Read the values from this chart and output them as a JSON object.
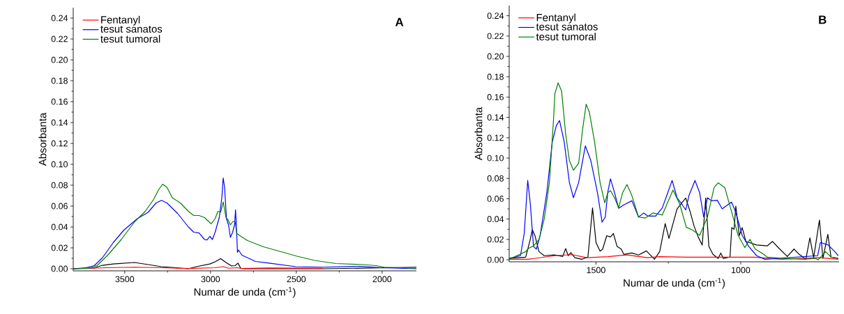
{
  "chart_data": [
    {
      "type": "line",
      "xlabel": "Numar de unda (cm$^{-1}$)",
      "ylabel": "Absorbanta",
      "annotations": [
        "A"
      ],
      "legend": "top left",
      "xlim": [
        3800,
        1800
      ],
      "ylim": [
        -0.002,
        0.25
      ],
      "xticks": [
        3500,
        3000,
        2500,
        2000
      ],
      "yticks": [
        {
          "value": 0,
          "label": "0.00"
        },
        {
          "value": 0.02,
          "label": "0.02"
        },
        {
          "value": 0.04,
          "label": "0.04"
        },
        {
          "value": 0.06,
          "label": "0.06"
        },
        {
          "value": 0.08,
          "label": "0.08"
        },
        {
          "value": 0.1,
          "label": "0.10"
        },
        {
          "value": 0.12,
          "label": "0.12"
        },
        {
          "value": 0.14,
          "label": "0.14"
        },
        {
          "value": 0.16,
          "label": "0.16"
        },
        {
          "value": 0.18,
          "label": "0.18"
        },
        {
          "value": 0.2,
          "label": "0.20"
        },
        {
          "value": 0.22,
          "label": "0.22"
        },
        {
          "value": 0.24,
          "label": "0.24"
        }
      ],
      "series": [
        {
          "color": "#000000",
          "x": [
            3800,
            3677,
            3630,
            3567,
            3442,
            3364,
            3286,
            3129,
            3082,
            3004,
            2973,
            2941,
            2910,
            2879,
            2856,
            2840,
            2824,
            2801,
            2347,
            1956,
            1800
          ],
          "values": [
            0,
            0.0008,
            0.0033,
            0.0046,
            0.006,
            0.004,
            0.002,
            0,
            0.002,
            0.0046,
            0.0067,
            0.0097,
            0.006,
            0.0028,
            0.003,
            0.0054,
            0.0005,
            0,
            0,
            0.001,
            0.0015
          ]
        },
        {
          "name": "Fentanyl",
          "color": "#ff0000",
          "x": [
            3800,
            3599,
            3442,
            3286,
            3129,
            2973,
            2923,
            2895,
            2848,
            2817,
            2660,
            2347
          ],
          "values": [
            0,
            0.001,
            0.0015,
            0.001,
            0.0003,
            0.001,
            0.002,
            0.0005,
            0.001,
            0.0003,
            0.0008,
            0.0005
          ]
        },
        {
          "name": "tesut sanatos",
          "color": "#0000ff",
          "x": [
            3800,
            3724,
            3677,
            3630,
            3567,
            3505,
            3426,
            3364,
            3317,
            3286,
            3254,
            3192,
            3129,
            3098,
            3067,
            3035,
            3020,
            3004,
            2989,
            2973,
            2949,
            2934,
            2926,
            2918,
            2907,
            2895,
            2884,
            2871,
            2860,
            2854,
            2848,
            2843,
            2837,
            2817,
            2738,
            2660,
            2504,
            2347,
            2128,
            2003,
            1800
          ],
          "values": [
            0,
            0.001,
            0.003,
            0.0105,
            0.025,
            0.037,
            0.048,
            0.054,
            0.063,
            0.0655,
            0.063,
            0.053,
            0.04,
            0.035,
            0.0343,
            0.028,
            0.0276,
            0.031,
            0.028,
            0.035,
            0.049,
            0.068,
            0.087,
            0.078,
            0.048,
            0.042,
            0.03,
            0.035,
            0.042,
            0.0565,
            0.037,
            0.0156,
            0.018,
            0.013,
            0.007,
            0.0054,
            0.002,
            0.0015,
            0.0023,
            0.001,
            0
          ]
        },
        {
          "name": "tesut tumoral",
          "color": "#008000",
          "x": [
            3800,
            3708,
            3661,
            3599,
            3520,
            3442,
            3380,
            3333,
            3301,
            3279,
            3254,
            3223,
            3176,
            3129,
            3098,
            3067,
            3035,
            2996,
            2973,
            2957,
            2941,
            2926,
            2910,
            2898,
            2884,
            2871,
            2856,
            2848,
            2832,
            2785,
            2691,
            2582,
            2496,
            2394,
            2269,
            2113,
            2035,
            1988,
            1800
          ],
          "values": [
            0,
            0.0005,
            0.003,
            0.013,
            0.028,
            0.045,
            0.055,
            0.066,
            0.076,
            0.081,
            0.078,
            0.068,
            0.063,
            0.055,
            0.051,
            0.051,
            0.049,
            0.043,
            0.048,
            0.055,
            0.054,
            0.064,
            0.049,
            0.047,
            0.042,
            0.045,
            0.045,
            0.034,
            0.032,
            0.027,
            0.021,
            0.016,
            0.012,
            0.008,
            0.005,
            0.004,
            0.003,
            0.0015,
            0.0005
          ]
        }
      ]
    },
    {
      "type": "line",
      "xlabel": "Numar de unda (cm$^{-1}$)",
      "ylabel": "Absorbanta",
      "annotations": [
        "B"
      ],
      "legend": "top left",
      "xlim": [
        1800,
        660
      ],
      "ylim": [
        -0.002,
        0.25
      ],
      "xticks": [
        1500,
        1000
      ],
      "yticks": [
        {
          "value": 0,
          "label": "0.00"
        },
        {
          "value": 0.02,
          "label": "0.02"
        },
        {
          "value": 0.04,
          "label": "0.04"
        },
        {
          "value": 0.06,
          "label": "0.06"
        },
        {
          "value": 0.08,
          "label": "0.08"
        },
        {
          "value": 0.1,
          "label": "0.10"
        },
        {
          "value": 0.12,
          "label": "0.12"
        },
        {
          "value": 0.14,
          "label": "0.14"
        },
        {
          "value": 0.16,
          "label": "0.16"
        },
        {
          "value": 0.18,
          "label": "0.18"
        },
        {
          "value": 0.2,
          "label": "0.20"
        },
        {
          "value": 0.22,
          "label": "0.22"
        },
        {
          "value": 0.24,
          "label": "0.24"
        }
      ],
      "series": [
        {
          "color": "#000000",
          "x": [
            1800,
            1743,
            1729,
            1720,
            1711,
            1697,
            1679,
            1642,
            1615,
            1605,
            1596,
            1587,
            1573,
            1550,
            1528,
            1512,
            1500,
            1486,
            1477,
            1463,
            1450,
            1440,
            1427,
            1413,
            1404,
            1376,
            1353,
            1326,
            1298,
            1280,
            1261,
            1248,
            1220,
            1190,
            1175,
            1161,
            1147,
            1133,
            1121,
            1110,
            1096,
            1078,
            1069,
            1060,
            1037,
            1031,
            1023,
            1017,
            1005,
            995,
            982,
            945,
            908,
            890,
            867,
            839,
            816,
            798,
            775,
            761,
            748,
            728,
            716,
            699,
            688,
            663
          ],
          "values": [
            0.0013,
            0.0026,
            0.018,
            0.0295,
            0.0237,
            0.008,
            0.004,
            0.0047,
            0.0032,
            0.011,
            0.004,
            0.007,
            0.002,
            0.0005,
            0.0026,
            0.051,
            0.017,
            0.0084,
            0.0105,
            0.0237,
            0.0224,
            0.0258,
            0.013,
            0.0105,
            0.0053,
            0.0066,
            0.0047,
            0.0087,
            0.0005,
            0.008,
            0.0356,
            0.021,
            0.05,
            0.0607,
            0.0475,
            0.033,
            0.0224,
            0.0145,
            0.0607,
            0.013,
            0.0053,
            0.0013,
            0.0066,
            0.0013,
            0.0026,
            0.0316,
            0.03,
            0.0527,
            0.0237,
            0.0316,
            0.018,
            0.0145,
            0.0137,
            0.018,
            0.011,
            0.0032,
            0.0105,
            0.0053,
            0.0005,
            0.0216,
            0.002,
            0.039,
            0.0013,
            0.025,
            0.0026,
            0.0013
          ]
        },
        {
          "name": "Fentanyl",
          "color": "#ff0000",
          "x": [
            1800,
            1734,
            1642,
            1583,
            1532,
            1459,
            1394,
            1321,
            1280,
            1184,
            1092,
            954,
            862,
            725,
            663
          ],
          "values": [
            0.0005,
            0.0005,
            0.004,
            0.005,
            0.002,
            0.003,
            0.0047,
            0.002,
            0.003,
            0.0026,
            0.0026,
            0.0026,
            0.0005,
            0.002,
            0.0005
          ]
        },
        {
          "name": "tesut sanatos",
          "color": "#0000ff",
          "x": [
            1800,
            1761,
            1748,
            1736,
            1727,
            1716,
            1706,
            1693,
            1670,
            1651,
            1637,
            1626,
            1610,
            1592,
            1578,
            1560,
            1537,
            1518,
            1495,
            1479,
            1468,
            1459,
            1450,
            1436,
            1422,
            1404,
            1376,
            1353,
            1335,
            1321,
            1294,
            1271,
            1252,
            1237,
            1220,
            1202,
            1190,
            1179,
            1158,
            1142,
            1128,
            1115,
            1101,
            1081,
            1064,
            1032,
            1018,
            995,
            972,
            945,
            917,
            771,
            734,
            725,
            698,
            675,
            663
          ],
          "values": [
            0.0013,
            0.004,
            0.026,
            0.078,
            0.055,
            0.013,
            0.0105,
            0.024,
            0.066,
            0.116,
            0.132,
            0.137,
            0.116,
            0.076,
            0.061,
            0.076,
            0.112,
            0.0976,
            0.066,
            0.037,
            0.042,
            0.067,
            0.0796,
            0.066,
            0.0506,
            0.054,
            0.058,
            0.042,
            0.046,
            0.043,
            0.043,
            0.051,
            0.066,
            0.078,
            0.061,
            0.054,
            0.049,
            0.063,
            0.078,
            0.066,
            0.042,
            0.061,
            0.058,
            0.0585,
            0.05,
            0.0567,
            0.0475,
            0.024,
            0.013,
            0.004,
            0.0005,
            null,
            0.004,
            0.017,
            0.0145,
            0.008,
            0.004
          ]
        },
        {
          "name": "tesut tumoral",
          "color": "#008000",
          "x": [
            1800,
            1743,
            1734,
            1716,
            1697,
            1679,
            1661,
            1647,
            1642,
            1631,
            1619,
            1605,
            1592,
            1578,
            1560,
            1546,
            1534,
            1523,
            1505,
            1486,
            1470,
            1459,
            1450,
            1436,
            1422,
            1408,
            1393,
            1376,
            1353,
            1330,
            1303,
            1271,
            1234,
            1211,
            1188,
            1165,
            1142,
            1115,
            1092,
            1078,
            1055,
            1032,
            1009,
            986,
            968,
            950,
            927,
            908,
            853,
            780,
            743,
            732,
            707,
            688,
            663
          ],
          "values": [
            0.0005,
            0.008,
            0.011,
            0.0137,
            0.0198,
            0.04,
            0.076,
            0.137,
            0.1635,
            0.174,
            0.166,
            0.124,
            0.0976,
            0.088,
            0.095,
            0.129,
            0.153,
            0.145,
            0.116,
            0.076,
            0.056,
            0.066,
            0.068,
            0.061,
            0.051,
            0.066,
            0.074,
            0.063,
            0.042,
            0.041,
            0.046,
            0.044,
            0.0686,
            0.055,
            0.032,
            0.029,
            0.024,
            0.042,
            0.071,
            0.0757,
            0.071,
            0.0475,
            0.024,
            0.012,
            0.02,
            0.0105,
            0.0066,
            0.0026,
            0.0013,
            0.0005,
            0.0013,
            0,
            0.008,
            0.0026,
            0.0013
          ]
        }
      ]
    }
  ]
}
